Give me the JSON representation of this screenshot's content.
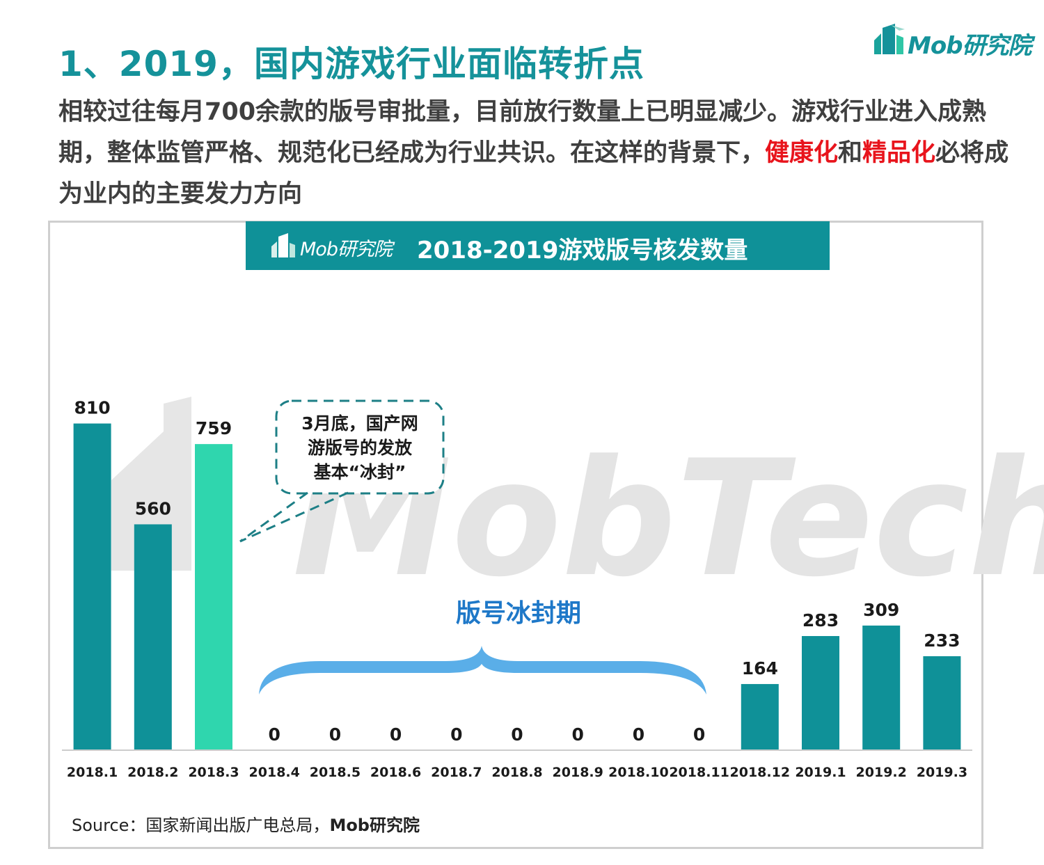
{
  "page": {
    "title": "1、2019，国内游戏行业面临转折点",
    "intro_part1": "相较过往每月700余款的版号审批量，目前放行数量上已明显减少。游戏行业进入成熟期，整体监管严格、规范化已经成为行业共识。在这样的背景下，",
    "intro_hl1": "健康化",
    "intro_and": "和",
    "intro_hl2": "精品化",
    "intro_part2": "必将成为业内的主要发力方向"
  },
  "brand": {
    "logo_text": "Mob研究院"
  },
  "chart_header": {
    "brand": "Mob研究院",
    "title": "2018-2019游戏版号核发数量"
  },
  "watermark": "MobTech",
  "callout": {
    "lines": [
      "3月底，国产网",
      "游版号的发放",
      "基本“冰封”"
    ]
  },
  "freeze_label": "版号冰封期",
  "source": {
    "prefix": "Source：国家新闻出版广电总局，",
    "bold": "Mob研究院"
  },
  "colors": {
    "accent": "#15929a",
    "bar": "#0f9198",
    "bar_highlight": "#2fd6ae",
    "brace": "#5aaee8",
    "freeze_label": "#1e78c8",
    "highlight_text": "#e8141c"
  },
  "chart_data": {
    "type": "bar",
    "title": "2018-2019游戏版号核发数量",
    "categories": [
      "2018.1",
      "2018.2",
      "2018.3",
      "2018.4",
      "2018.5",
      "2018.6",
      "2018.7",
      "2018.8",
      "2018.9",
      "2018.10",
      "2018.11",
      "2018.12",
      "2019.1",
      "2019.2",
      "2019.3"
    ],
    "values": [
      810,
      560,
      759,
      0,
      0,
      0,
      0,
      0,
      0,
      0,
      0,
      164,
      283,
      309,
      233
    ],
    "highlight_category": "2018.3",
    "data_labels": true,
    "grid": false,
    "legend": "none",
    "ylim": [
      0,
      880
    ]
  }
}
